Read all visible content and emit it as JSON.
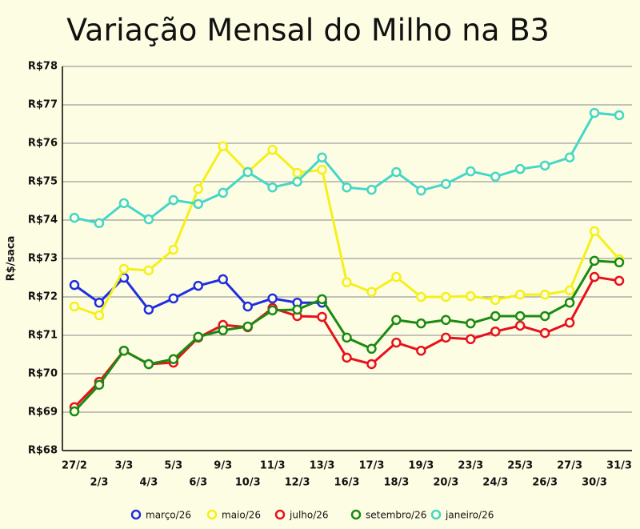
{
  "chart_data": {
    "type": "line",
    "title": "Variação Mensal do Milho na B3",
    "y_label": "R$/saca",
    "categories": [
      "27/2",
      "2/3",
      "3/3",
      "4/3",
      "5/3",
      "6/3",
      "9/3",
      "10/3",
      "11/3",
      "12/3",
      "13/3",
      "16/3",
      "17/3",
      "18/3",
      "19/3",
      "20/3",
      "23/3",
      "24/3",
      "25/3",
      "26/3",
      "27/3",
      "30/3",
      "31/3"
    ],
    "ylim": [
      68,
      78
    ],
    "yticks": [
      {
        "value": 68,
        "label": "R$68"
      },
      {
        "value": 69,
        "label": "R$69"
      },
      {
        "value": 70,
        "label": "R$70"
      },
      {
        "value": 71,
        "label": "R$71"
      },
      {
        "value": 72,
        "label": "R$72"
      },
      {
        "value": 73,
        "label": "R$73"
      },
      {
        "value": 74,
        "label": "R$74"
      },
      {
        "value": 75,
        "label": "R$75"
      },
      {
        "value": 76,
        "label": "R$76"
      },
      {
        "value": 77,
        "label": "R$77"
      },
      {
        "value": 78,
        "label": "R$78"
      }
    ],
    "grid": true,
    "legend": "bottom",
    "series": [
      {
        "name": "março/26",
        "color": "#1f2ee0",
        "values": [
          72.31,
          71.85,
          72.5,
          71.67,
          71.96,
          72.29,
          72.46,
          71.75,
          71.96,
          71.85,
          71.85,
          null,
          null,
          null,
          null,
          null,
          null,
          null,
          null,
          null,
          null,
          null,
          null
        ]
      },
      {
        "name": "maio/26",
        "color": "#f5f01a",
        "values": [
          71.75,
          71.52,
          72.73,
          72.69,
          73.23,
          74.81,
          75.92,
          75.25,
          75.83,
          75.23,
          75.31,
          72.38,
          72.13,
          72.52,
          72.0,
          72.0,
          72.02,
          71.92,
          72.06,
          72.06,
          72.17,
          73.71,
          72.98
        ]
      },
      {
        "name": "julho/26",
        "color": "#e8101e",
        "values": [
          69.13,
          69.79,
          70.6,
          70.25,
          70.29,
          70.94,
          71.27,
          71.21,
          71.71,
          71.5,
          71.48,
          70.42,
          70.25,
          70.81,
          70.6,
          70.94,
          70.9,
          71.1,
          71.25,
          71.06,
          71.33,
          72.52,
          72.42
        ]
      },
      {
        "name": "setembro/26",
        "color": "#1a8a12",
        "values": [
          69.02,
          69.71,
          70.6,
          70.25,
          70.38,
          70.96,
          71.13,
          71.23,
          71.65,
          71.67,
          71.94,
          70.94,
          70.65,
          71.4,
          71.31,
          71.4,
          71.31,
          71.5,
          71.5,
          71.5,
          71.85,
          72.94,
          72.9
        ]
      },
      {
        "name": "janeiro/26",
        "color": "#45d6c8",
        "values": [
          74.06,
          73.92,
          74.44,
          74.02,
          74.52,
          74.42,
          74.71,
          75.25,
          74.85,
          75.0,
          75.63,
          74.85,
          74.79,
          75.25,
          74.77,
          74.94,
          75.27,
          75.13,
          75.33,
          75.42,
          75.63,
          76.79,
          76.73
        ]
      }
    ]
  }
}
